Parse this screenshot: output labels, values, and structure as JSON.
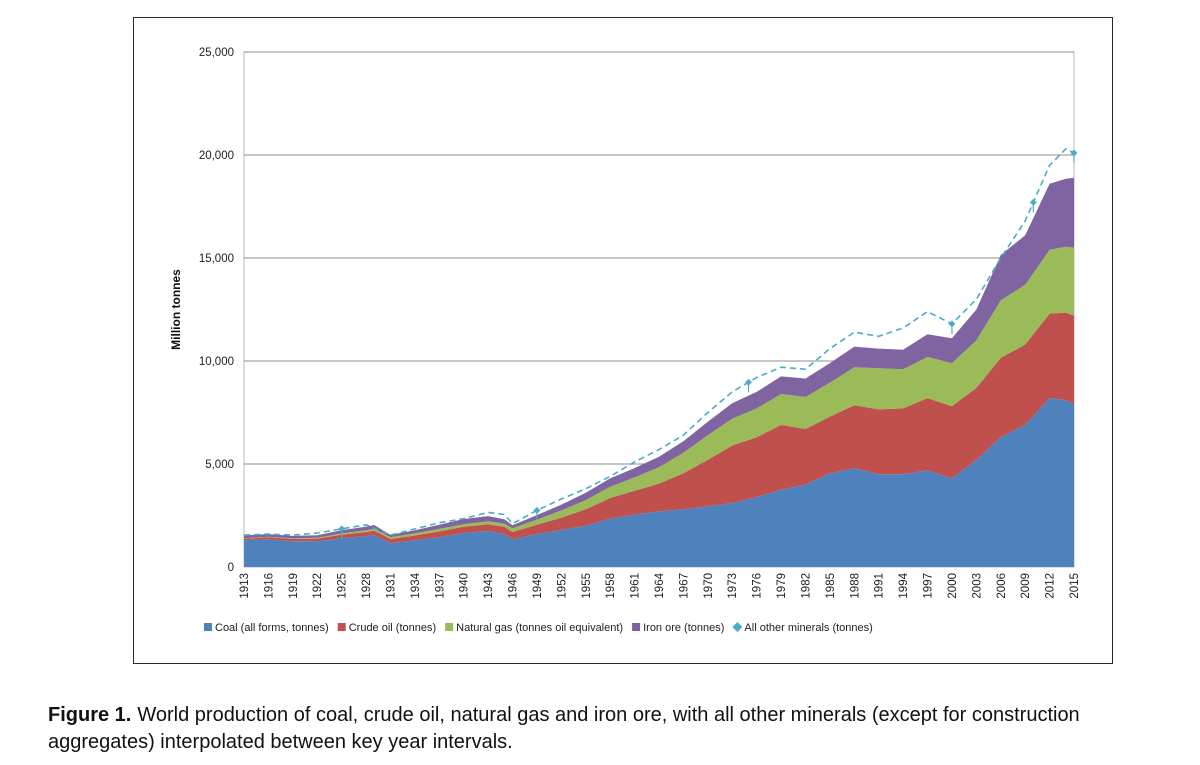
{
  "chart_data": {
    "type": "area",
    "stacked": true,
    "ylabel": "Million tonnes",
    "ylim": [
      0,
      25000
    ],
    "yticks": [
      0,
      5000,
      10000,
      15000,
      20000,
      25000
    ],
    "ytick_labels": [
      "0",
      "5,000",
      "10,000",
      "15,000",
      "20,000",
      "25,000"
    ],
    "xlim": [
      1913,
      2015
    ],
    "xtick_labels": [
      "1913",
      "1916",
      "1919",
      "1922",
      "1925",
      "1928",
      "1931",
      "1934",
      "1937",
      "1940",
      "1943",
      "1946",
      "1949",
      "1952",
      "1955",
      "1958",
      "1961",
      "1964",
      "1967",
      "1970",
      "1973",
      "1976",
      "1979",
      "1982",
      "1985",
      "1988",
      "1991",
      "1994",
      "1997",
      "2000",
      "2003",
      "2006",
      "2009",
      "2012",
      "2015"
    ],
    "grid": "horizontal",
    "legend_position": "bottom",
    "x": [
      1913,
      1916,
      1919,
      1922,
      1925,
      1928,
      1929,
      1931,
      1934,
      1937,
      1940,
      1943,
      1945,
      1946,
      1949,
      1952,
      1955,
      1958,
      1961,
      1964,
      1967,
      1970,
      1973,
      1976,
      1979,
      1982,
      1985,
      1988,
      1991,
      1994,
      1997,
      2000,
      2003,
      2006,
      2009,
      2012,
      2014,
      2015
    ],
    "series": [
      {
        "name": "Coal (all forms, tonnes)",
        "color": "#4f81bd",
        "values": [
          1300,
          1350,
          1250,
          1250,
          1400,
          1500,
          1550,
          1150,
          1300,
          1450,
          1650,
          1750,
          1600,
          1350,
          1600,
          1800,
          2000,
          2350,
          2550,
          2700,
          2800,
          2950,
          3100,
          3400,
          3750,
          4000,
          4550,
          4800,
          4500,
          4500,
          4700,
          4300,
          5200,
          6300,
          6900,
          8200,
          8100,
          7900
        ]
      },
      {
        "name": "Crude oil (tonnes)",
        "color": "#c0504d",
        "values": [
          70,
          90,
          110,
          130,
          170,
          200,
          210,
          210,
          230,
          280,
          300,
          320,
          350,
          350,
          450,
          600,
          800,
          1000,
          1150,
          1350,
          1750,
          2250,
          2800,
          2900,
          3150,
          2700,
          2750,
          3050,
          3150,
          3200,
          3500,
          3500,
          3500,
          3850,
          3900,
          4100,
          4250,
          4300
        ]
      },
      {
        "name": "Natural gas (tonnes oil equivalent)",
        "color": "#9bbb59",
        "values": [
          20,
          25,
          30,
          40,
          60,
          80,
          90,
          90,
          100,
          120,
          130,
          150,
          150,
          180,
          250,
          350,
          450,
          550,
          650,
          800,
          1000,
          1200,
          1300,
          1400,
          1500,
          1550,
          1650,
          1850,
          2000,
          1900,
          2000,
          2100,
          2300,
          2800,
          2900,
          3100,
          3200,
          3300
        ]
      },
      {
        "name": "Iron ore (tonnes)",
        "color": "#8064a2",
        "values": [
          150,
          130,
          120,
          120,
          150,
          180,
          190,
          110,
          150,
          200,
          250,
          250,
          220,
          150,
          220,
          280,
          350,
          400,
          450,
          500,
          550,
          650,
          750,
          800,
          850,
          900,
          950,
          1000,
          950,
          950,
          1100,
          1200,
          1500,
          2200,
          2400,
          3200,
          3300,
          3400
        ]
      }
    ],
    "dashed_series": {
      "name": "All other minerals (tonnes)",
      "color": "#4bacc6",
      "x": [
        1913,
        1916,
        1919,
        1922,
        1925,
        1928,
        1931,
        1934,
        1937,
        1940,
        1943,
        1945,
        1946,
        1949,
        1952,
        1955,
        1958,
        1961,
        1964,
        1967,
        1970,
        1973,
        1976,
        1979,
        1982,
        1985,
        1988,
        1991,
        1994,
        1997,
        2000,
        2003,
        2006,
        2009,
        2012,
        2014,
        2015
      ],
      "values": [
        1550,
        1600,
        1550,
        1650,
        1850,
        2050,
        1550,
        1850,
        2150,
        2350,
        2650,
        2550,
        2100,
        2750,
        3300,
        3800,
        4400,
        5100,
        5700,
        6400,
        7500,
        8500,
        9200,
        9700,
        9600,
        10600,
        11400,
        11200,
        11600,
        12400,
        11800,
        13000,
        15000,
        16800,
        19500,
        20300,
        20100
      ],
      "markers": [
        1925,
        1949,
        1975,
        2000,
        2010,
        2015
      ]
    }
  },
  "caption": {
    "label": "Figure 1.",
    "text": "World production of coal, crude oil, natural gas and iron ore, with all other minerals (except for construction aggregates) interpolated between key year intervals."
  }
}
